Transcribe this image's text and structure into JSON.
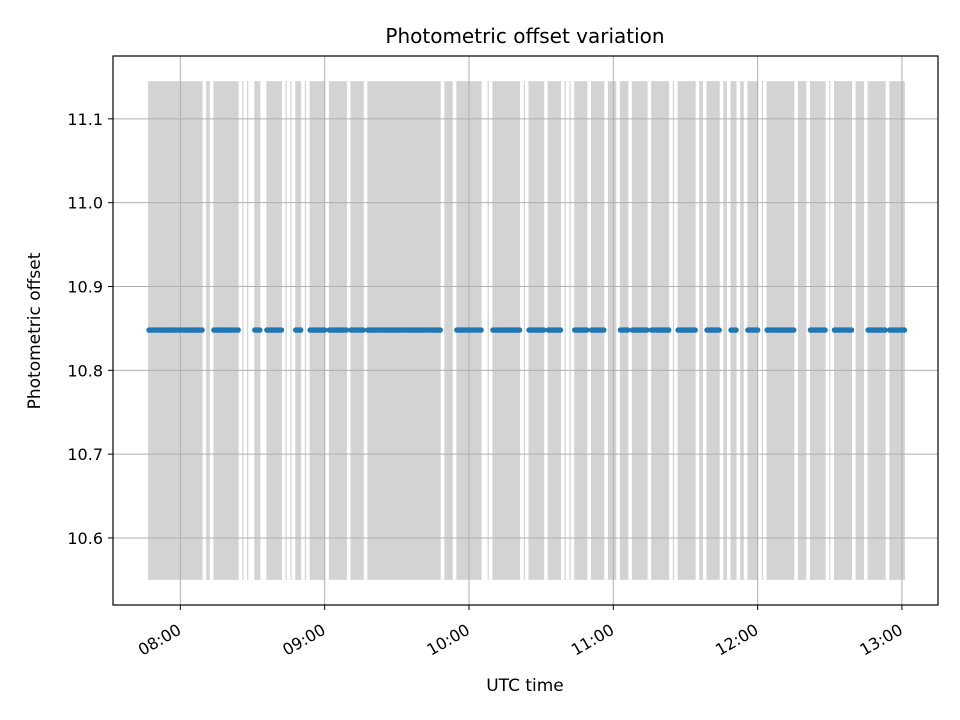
{
  "chart_data": {
    "type": "scatter",
    "title": "Photometric offset variation",
    "xlabel": "UTC time",
    "ylabel": "Photometric offset",
    "x_axis_kind": "time",
    "xlim": [
      "07:32",
      "13:15"
    ],
    "ylim": [
      10.52,
      11.175
    ],
    "x_ticks": [
      "08:00",
      "09:00",
      "10:00",
      "11:00",
      "12:00",
      "13:00"
    ],
    "y_ticks": [
      10.6,
      10.7,
      10.8,
      10.9,
      11.0,
      11.1
    ],
    "grid": true,
    "legend": "none",
    "colors": {
      "points": "#1f77b4",
      "bands": "#d3d3d3",
      "grid": "#b0b0b0"
    },
    "bands": {
      "y_range": [
        10.55,
        11.145
      ],
      "x_gaps": [
        "08:10",
        "08:13",
        "08:25",
        "08:27",
        "08:29",
        "08:30",
        "08:34",
        "08:35",
        "08:43",
        "08:45",
        "08:47",
        "08:51",
        "08:53",
        "09:01",
        "09:10",
        "09:17",
        "09:49",
        "09:54",
        "10:06",
        "10:07",
        "10:09",
        "10:22",
        "10:24",
        "10:32",
        "10:39",
        "10:41",
        "10:43",
        "10:50",
        "10:57",
        "11:02",
        "11:07",
        "11:15",
        "11:24",
        "11:26",
        "11:35",
        "11:38",
        "11:45",
        "11:48",
        "11:52",
        "11:55",
        "12:01",
        "12:03",
        "12:16",
        "12:21",
        "12:29",
        "12:31",
        "12:40",
        "12:45",
        "12:54",
        "13:02",
        "13:07",
        "13:11"
      ]
    },
    "series": [
      {
        "x": [
          "07:47",
          "07:48",
          "07:49",
          "07:50",
          "07:51",
          "07:52",
          "07:53",
          "07:54",
          "07:55",
          "07:56",
          "07:57",
          "07:58",
          "07:59",
          "08:00",
          "08:01",
          "08:02",
          "08:03",
          "08:04",
          "08:05",
          "08:06",
          "08:07",
          "08:08",
          "08:09",
          "08:14",
          "08:15",
          "08:16",
          "08:17",
          "08:18",
          "08:19",
          "08:20",
          "08:21",
          "08:22",
          "08:23",
          "08:24",
          "08:31",
          "08:32",
          "08:33",
          "08:36",
          "08:37",
          "08:38",
          "08:39",
          "08:40",
          "08:41",
          "08:42",
          "08:48",
          "08:49",
          "08:50",
          "08:54",
          "08:55",
          "08:56",
          "08:57",
          "08:58",
          "08:59",
          "09:00",
          "09:02",
          "09:03",
          "09:04",
          "09:05",
          "09:06",
          "09:07",
          "09:08",
          "09:09",
          "09:11",
          "09:12",
          "09:13",
          "09:14",
          "09:15",
          "09:16",
          "09:18",
          "09:19",
          "09:20",
          "09:21",
          "09:22",
          "09:23",
          "09:24",
          "09:25",
          "09:26",
          "09:27",
          "09:28",
          "09:29",
          "09:30",
          "09:31",
          "09:32",
          "09:33",
          "09:34",
          "09:35",
          "09:36",
          "09:37",
          "09:38",
          "09:39",
          "09:40",
          "09:41",
          "09:42",
          "09:43",
          "09:44",
          "09:45",
          "09:46",
          "09:47",
          "09:48",
          "09:55",
          "09:56",
          "09:57",
          "09:58",
          "09:59",
          "10:00",
          "10:01",
          "10:02",
          "10:03",
          "10:04",
          "10:05",
          "10:10",
          "10:11",
          "10:12",
          "10:13",
          "10:14",
          "10:15",
          "10:16",
          "10:17",
          "10:18",
          "10:19",
          "10:20",
          "10:21",
          "10:25",
          "10:26",
          "10:27",
          "10:28",
          "10:29",
          "10:30",
          "10:31",
          "10:33",
          "10:34",
          "10:35",
          "10:36",
          "10:37",
          "10:38",
          "10:44",
          "10:45",
          "10:46",
          "10:47",
          "10:48",
          "10:49",
          "10:51",
          "10:52",
          "10:53",
          "10:54",
          "10:55",
          "10:56",
          "11:03",
          "11:04",
          "11:05",
          "11:06",
          "11:08",
          "11:09",
          "11:10",
          "11:11",
          "11:12",
          "11:13",
          "11:14",
          "11:16",
          "11:17",
          "11:18",
          "11:19",
          "11:20",
          "11:21",
          "11:22",
          "11:23",
          "11:27",
          "11:28",
          "11:29",
          "11:30",
          "11:31",
          "11:32",
          "11:33",
          "11:34",
          "11:39",
          "11:40",
          "11:41",
          "11:42",
          "11:43",
          "11:44",
          "11:49",
          "11:50",
          "11:51",
          "11:56",
          "11:57",
          "11:58",
          "11:59",
          "12:00",
          "12:04",
          "12:05",
          "12:06",
          "12:07",
          "12:08",
          "12:09",
          "12:10",
          "12:11",
          "12:12",
          "12:13",
          "12:14",
          "12:15",
          "12:22",
          "12:23",
          "12:24",
          "12:25",
          "12:26",
          "12:27",
          "12:28",
          "12:32",
          "12:33",
          "12:34",
          "12:35",
          "12:36",
          "12:37",
          "12:38",
          "12:39",
          "12:46",
          "12:47",
          "12:48",
          "12:49",
          "12:50",
          "12:51",
          "12:52",
          "12:53",
          "12:55",
          "12:56",
          "12:57",
          "12:58",
          "12:59",
          "13:00",
          "13:01"
        ],
        "y_value": 10.848
      }
    ]
  }
}
